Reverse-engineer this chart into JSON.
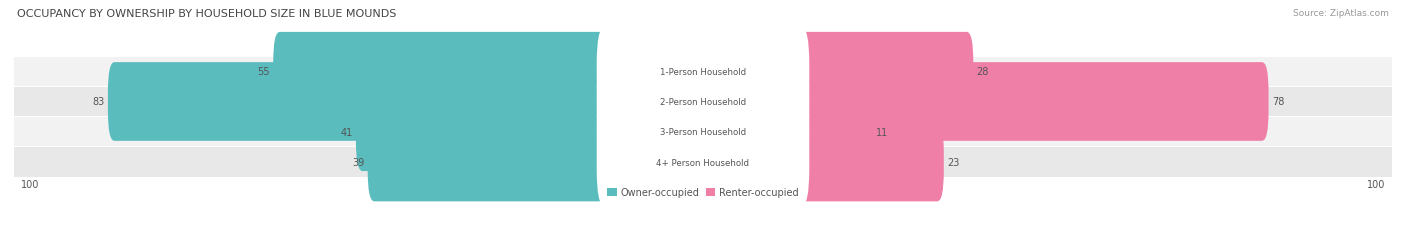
{
  "title": "OCCUPANCY BY OWNERSHIP BY HOUSEHOLD SIZE IN BLUE MOUNDS",
  "source": "Source: ZipAtlas.com",
  "categories": [
    "1-Person Household",
    "2-Person Household",
    "3-Person Household",
    "4+ Person Household"
  ],
  "owner_values": [
    55,
    83,
    41,
    39
  ],
  "renter_values": [
    28,
    78,
    11,
    23
  ],
  "max_val": 100,
  "owner_color": "#5bbcbe",
  "renter_color": "#f07fa8",
  "row_bg_colors": [
    "#f2f2f2",
    "#e8e8e8",
    "#f2f2f2",
    "#e8e8e8"
  ],
  "label_color": "#555555",
  "title_color": "#444444",
  "source_color": "#999999",
  "legend_owner": "Owner-occupied",
  "legend_renter": "Renter-occupied",
  "axis_label_val": "100",
  "figsize": [
    14.06,
    2.32
  ],
  "dpi": 100
}
